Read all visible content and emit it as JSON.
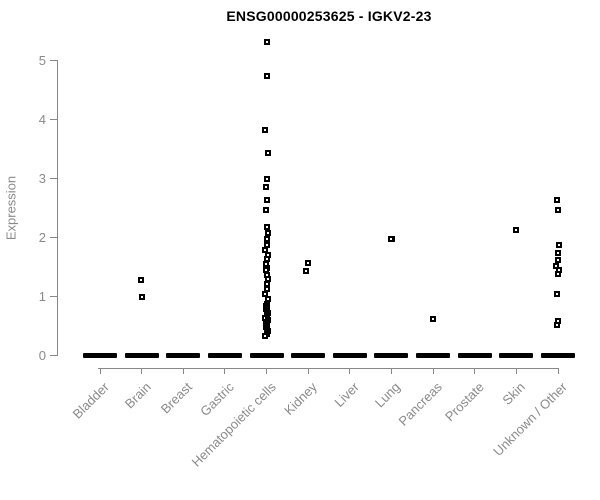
{
  "chart_data": {
    "type": "scatter",
    "subtype": "strip-plot",
    "title": "ENSG00000253625 - IGKV2-23",
    "xlabel": "",
    "ylabel": "Expression",
    "ylim": [
      0,
      5.4
    ],
    "yticks": [
      0,
      1,
      2,
      3,
      4,
      5
    ],
    "grid": false,
    "legend": "none",
    "marker": "small-open-square",
    "marker_color": "#000000",
    "axis_color": "#888888",
    "text_color": "#8a8a8a",
    "categories": [
      "Bladder",
      "Brain",
      "Breast",
      "Gastric",
      "Hematopoietic cells",
      "Kidney",
      "Liver",
      "Lung",
      "Pancreas",
      "Prostate",
      "Skin",
      "Unknown / Other"
    ],
    "series": [
      {
        "name": "Bladder",
        "zero_cluster_dash": true,
        "nonzero_values": []
      },
      {
        "name": "Brain",
        "zero_cluster_dash": true,
        "nonzero_values": [
          1.28,
          0.99
        ]
      },
      {
        "name": "Breast",
        "zero_cluster_dash": true,
        "nonzero_values": []
      },
      {
        "name": "Gastric",
        "zero_cluster_dash": true,
        "nonzero_values": []
      },
      {
        "name": "Hematopoietic cells",
        "zero_cluster_dash": true,
        "nonzero_values": [
          5.31,
          4.73,
          3.82,
          3.44,
          2.99,
          2.85,
          2.64,
          2.47,
          2.17,
          2.07,
          1.97,
          1.87,
          1.79,
          1.71,
          1.63,
          1.55,
          1.49,
          1.45,
          1.37,
          1.29,
          1.21,
          1.13,
          1.05,
          0.96,
          0.87,
          0.84,
          0.81,
          0.78,
          0.75,
          0.72,
          0.69,
          0.66,
          0.63,
          0.6,
          0.57,
          0.54,
          0.51,
          0.48,
          0.45,
          0.42,
          0.39,
          0.36,
          0.33
        ]
      },
      {
        "name": "Kidney",
        "zero_cluster_dash": true,
        "nonzero_values": [
          1.57,
          1.44
        ]
      },
      {
        "name": "Liver",
        "zero_cluster_dash": true,
        "nonzero_values": []
      },
      {
        "name": "Lung",
        "zero_cluster_dash": true,
        "nonzero_values": [
          1.98,
          1.97
        ]
      },
      {
        "name": "Pancreas",
        "zero_cluster_dash": true,
        "nonzero_values": [
          0.62
        ]
      },
      {
        "name": "Prostate",
        "zero_cluster_dash": true,
        "nonzero_values": []
      },
      {
        "name": "Skin",
        "zero_cluster_dash": true,
        "nonzero_values": [
          2.13
        ]
      },
      {
        "name": "Unknown / Other",
        "zero_cluster_dash": true,
        "nonzero_values": [
          2.63,
          2.46,
          1.88,
          1.74,
          1.62,
          1.52,
          1.45,
          1.38,
          1.04,
          0.59,
          0.51
        ]
      }
    ]
  }
}
